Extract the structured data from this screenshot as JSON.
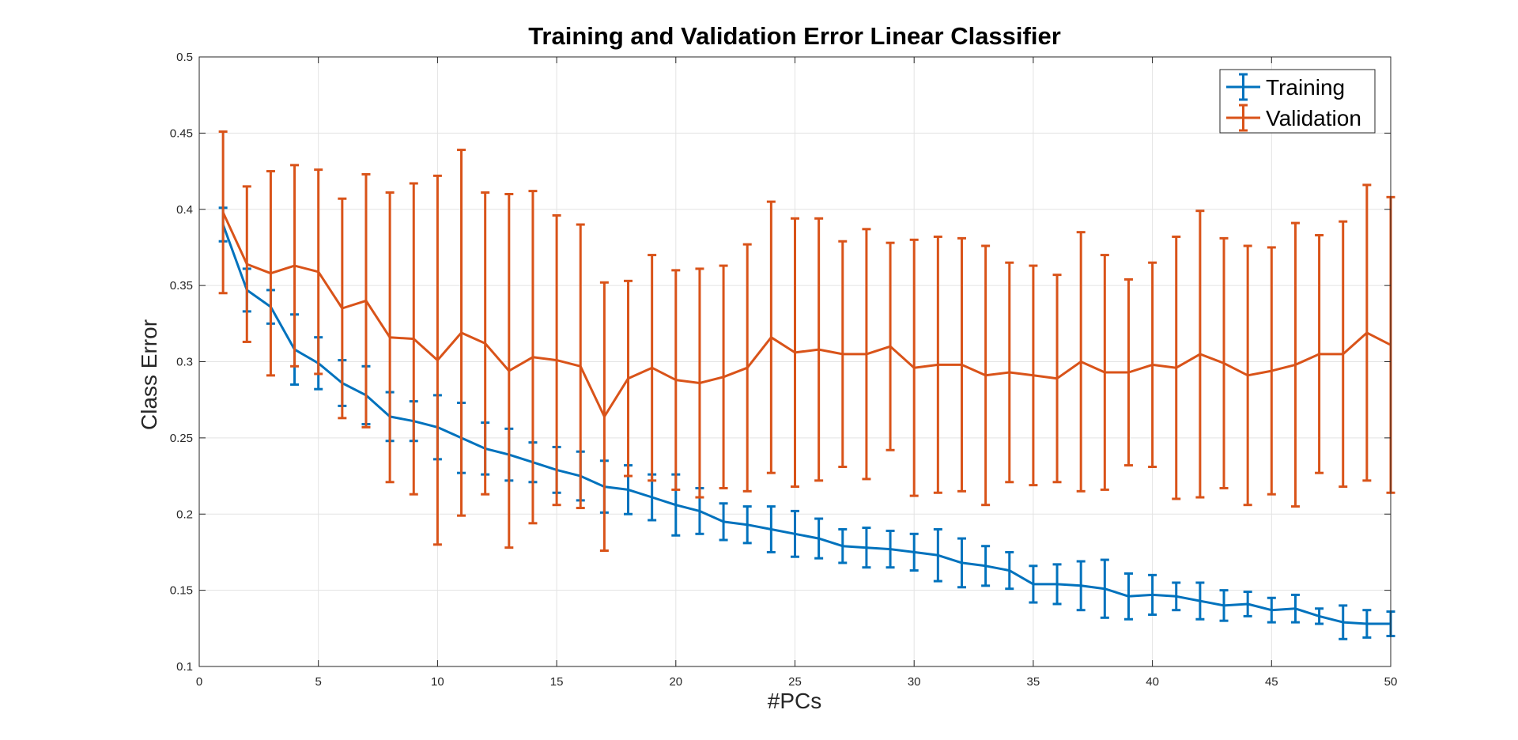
{
  "chart_data": {
    "type": "line",
    "title": "Training and Validation Error Linear Classifier",
    "xlabel": "#PCs",
    "ylabel": "Class Error",
    "xlim": [
      0,
      50
    ],
    "ylim": [
      0.1,
      0.5
    ],
    "xticks": [
      0,
      5,
      10,
      15,
      20,
      25,
      30,
      35,
      40,
      45,
      50
    ],
    "yticks": [
      0.1,
      0.15,
      0.2,
      0.25,
      0.3,
      0.35,
      0.4,
      0.45,
      0.5
    ],
    "xtick_labels": [
      "0",
      "5",
      "10",
      "15",
      "20",
      "25",
      "30",
      "35",
      "40",
      "45",
      "50"
    ],
    "ytick_labels": [
      "0.1",
      "0.15",
      "0.2",
      "0.25",
      "0.3",
      "0.35",
      "0.4",
      "0.45",
      "0.5"
    ],
    "grid": true,
    "legend_position": "top-right",
    "x": [
      1,
      2,
      3,
      4,
      5,
      6,
      7,
      8,
      9,
      10,
      11,
      12,
      13,
      14,
      15,
      16,
      17,
      18,
      19,
      20,
      21,
      22,
      23,
      24,
      25,
      26,
      27,
      28,
      29,
      30,
      31,
      32,
      33,
      34,
      35,
      36,
      37,
      38,
      39,
      40,
      41,
      42,
      43,
      44,
      45,
      46,
      47,
      48,
      49,
      50
    ],
    "series": [
      {
        "name": "Training",
        "color": "#0072BD",
        "values": [
          0.39,
          0.347,
          0.336,
          0.308,
          0.299,
          0.286,
          0.278,
          0.264,
          0.261,
          0.257,
          0.25,
          0.243,
          0.239,
          0.234,
          0.229,
          0.225,
          0.218,
          0.216,
          0.211,
          0.206,
          0.202,
          0.195,
          0.193,
          0.19,
          0.187,
          0.184,
          0.179,
          0.178,
          0.177,
          0.175,
          0.173,
          0.168,
          0.166,
          0.163,
          0.154,
          0.154,
          0.153,
          0.151,
          0.146,
          0.147,
          0.146,
          0.143,
          0.14,
          0.141,
          0.137,
          0.138,
          0.133,
          0.129,
          0.128,
          0.128
        ],
        "errors": [
          0.011,
          0.014,
          0.011,
          0.023,
          0.017,
          0.015,
          0.019,
          0.016,
          0.013,
          0.021,
          0.023,
          0.017,
          0.017,
          0.013,
          0.015,
          0.016,
          0.017,
          0.016,
          0.015,
          0.02,
          0.015,
          0.012,
          0.012,
          0.015,
          0.015,
          0.013,
          0.011,
          0.013,
          0.012,
          0.012,
          0.017,
          0.016,
          0.013,
          0.012,
          0.012,
          0.013,
          0.016,
          0.019,
          0.015,
          0.013,
          0.009,
          0.012,
          0.01,
          0.008,
          0.008,
          0.009,
          0.005,
          0.011,
          0.009,
          0.008
        ]
      },
      {
        "name": "Validation",
        "color": "#D95319",
        "values": [
          0.398,
          0.364,
          0.358,
          0.363,
          0.359,
          0.335,
          0.34,
          0.316,
          0.315,
          0.301,
          0.319,
          0.312,
          0.294,
          0.303,
          0.301,
          0.297,
          0.264,
          0.289,
          0.296,
          0.288,
          0.286,
          0.29,
          0.296,
          0.316,
          0.306,
          0.308,
          0.305,
          0.305,
          0.31,
          0.296,
          0.298,
          0.298,
          0.291,
          0.293,
          0.291,
          0.289,
          0.3,
          0.293,
          0.293,
          0.298,
          0.296,
          0.305,
          0.299,
          0.291,
          0.294,
          0.298,
          0.305,
          0.305,
          0.319,
          0.311
        ],
        "errors": [
          0.053,
          0.051,
          0.067,
          0.066,
          0.067,
          0.072,
          0.083,
          0.095,
          0.102,
          0.121,
          0.12,
          0.099,
          0.116,
          0.109,
          0.095,
          0.093,
          0.088,
          0.064,
          0.074,
          0.072,
          0.075,
          0.073,
          0.081,
          0.089,
          0.088,
          0.086,
          0.074,
          0.082,
          0.068,
          0.084,
          0.084,
          0.083,
          0.085,
          0.072,
          0.072,
          0.068,
          0.085,
          0.077,
          0.061,
          0.067,
          0.086,
          0.094,
          0.082,
          0.085,
          0.081,
          0.093,
          0.078,
          0.087,
          0.097,
          0.097
        ]
      }
    ]
  }
}
